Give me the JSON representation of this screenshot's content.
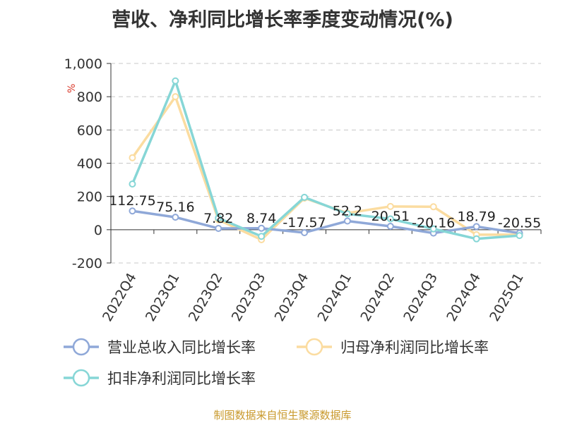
{
  "title": "营收、净利同比增长率季度变动情况(%)",
  "source": "制图数据来自恒生聚源数据库",
  "chart_data": {
    "type": "line",
    "title": "营收、净利同比增长率季度变动情况(%)",
    "ylabel": "%",
    "xlabel": "",
    "ylim": [
      -200,
      1000
    ],
    "yticks": [
      -200,
      0,
      200,
      400,
      600,
      800,
      1000
    ],
    "ytick_labels": [
      "-200",
      "0",
      "200",
      "400",
      "600",
      "800",
      "1,000"
    ],
    "grid": true,
    "legend_position": "bottom",
    "categories": [
      "2022Q4",
      "2023Q1",
      "2023Q2",
      "2023Q3",
      "2023Q4",
      "2024Q1",
      "2024Q2",
      "2024Q3",
      "2024Q4",
      "2025Q1"
    ],
    "series": [
      {
        "name": "营业总收入同比增长率",
        "color": "#8fa8d8",
        "values": [
          112.75,
          75.16,
          7.82,
          8.74,
          -17.57,
          52.2,
          20.51,
          -20.16,
          18.79,
          -20.55
        ],
        "labels": [
          "112.75",
          "75.16",
          "7.82",
          "8.74",
          "-17.57",
          "52.2",
          "20.51",
          "-20.16",
          "18.79",
          "-20.55"
        ]
      },
      {
        "name": "归母净利润同比增长率",
        "color": "#fbdca0",
        "values": [
          433,
          800,
          60,
          -60,
          190,
          100,
          140,
          138,
          -30,
          -30
        ]
      },
      {
        "name": "扣非净利润同比增长率",
        "color": "#86d6d6",
        "values": [
          275,
          895,
          70,
          -40,
          195,
          95,
          65,
          5,
          -55,
          -35
        ]
      }
    ]
  }
}
